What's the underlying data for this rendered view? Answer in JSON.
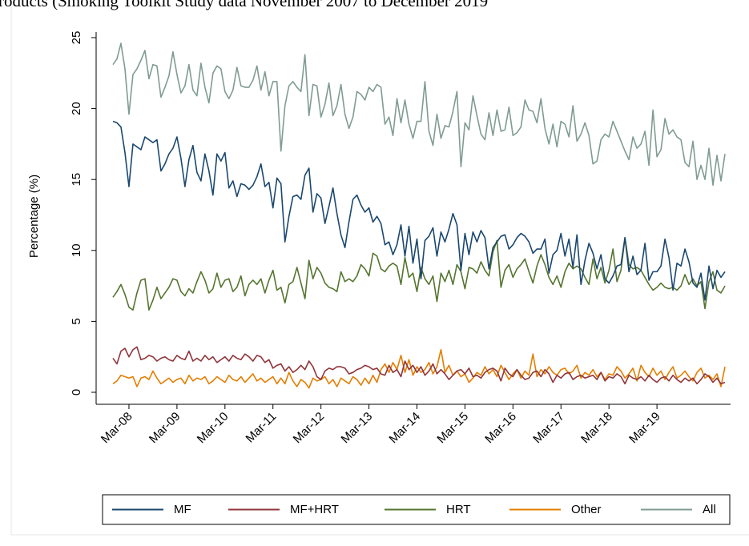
{
  "chart_data": {
    "type": "line",
    "title": "roducts (Smoking Toolkit Study data November 2007  to December 2019",
    "y_label": "Percentage (%)",
    "ylim": [
      0,
      25
    ],
    "yticks": [
      0,
      5,
      10,
      15,
      20,
      25
    ],
    "grid": false,
    "legend": "bottom",
    "categories": [
      null,
      null,
      null,
      null,
      "Mar-08",
      null,
      null,
      null,
      null,
      null,
      null,
      null,
      null,
      null,
      null,
      null,
      "Mar-09",
      null,
      null,
      null,
      null,
      null,
      null,
      null,
      null,
      null,
      null,
      null,
      "Mar-10",
      null,
      null,
      null,
      null,
      null,
      null,
      null,
      null,
      null,
      null,
      null,
      "Mar-11",
      null,
      null,
      null,
      null,
      null,
      null,
      null,
      null,
      null,
      null,
      null,
      "Mar-12",
      null,
      null,
      null,
      null,
      null,
      null,
      null,
      null,
      null,
      null,
      null,
      "Mar-13",
      null,
      null,
      null,
      null,
      null,
      null,
      null,
      null,
      null,
      null,
      null,
      "Mar-14",
      null,
      null,
      null,
      null,
      null,
      null,
      null,
      null,
      null,
      null,
      null,
      "Mar-15",
      null,
      null,
      null,
      null,
      null,
      null,
      null,
      null,
      null,
      null,
      null,
      "Mar-16",
      null,
      null,
      null,
      null,
      null,
      null,
      null,
      null,
      null,
      null,
      null,
      "Mar-17",
      null,
      null,
      null,
      null,
      null,
      null,
      null,
      null,
      null,
      null,
      null,
      "Mar-18",
      null,
      null,
      null,
      null,
      null,
      null,
      null,
      null,
      null,
      null,
      null,
      "Mar-19",
      null,
      null,
      null,
      null,
      null,
      null,
      null,
      null,
      null,
      null,
      null,
      null,
      null,
      null,
      null,
      null,
      null
    ],
    "series": [
      {
        "name": "MF",
        "color": "#1a476f",
        "values": [
          19.1,
          19.0,
          18.7,
          16.9,
          14.5,
          17.5,
          17.3,
          17.1,
          18.0,
          17.8,
          17.6,
          17.8,
          15.6,
          16.1,
          16.8,
          17.2,
          18.0,
          16.5,
          14.5,
          16.4,
          17.4,
          15.5,
          14.9,
          16.8,
          15.6,
          13.9,
          16.8,
          16.3,
          16.9,
          14.4,
          14.9,
          13.8,
          14.7,
          14.6,
          14.3,
          14.6,
          15.2,
          16.1,
          14.5,
          14.8,
          13.0,
          15.1,
          14.7,
          10.6,
          12.4,
          13.8,
          13.9,
          13.6,
          15.3,
          15.8,
          12.7,
          14.0,
          13.7,
          11.9,
          13.1,
          14.4,
          12.6,
          11.1,
          10.2,
          12.0,
          13.6,
          13.9,
          13.2,
          12.7,
          13.0,
          12.0,
          12.4,
          11.9,
          10.4,
          10.6,
          9.7,
          10.4,
          11.8,
          9.6,
          11.7,
          9.1,
          10.8,
          8.0,
          10.7,
          11.0,
          11.6,
          9.6,
          11.3,
          10.6,
          11.5,
          12.6,
          11.8,
          8.6,
          11.2,
          9.7,
          11.3,
          10.6,
          11.4,
          10.9,
          8.7,
          10.2,
          10.6,
          11.0,
          11.1,
          10.1,
          10.4,
          10.9,
          11.2,
          11.0,
          10.6,
          9.8,
          10.1,
          10.1,
          10.8,
          8.4,
          9.7,
          10.0,
          11.2,
          9.6,
          10.8,
          8.8,
          11.1,
          7.6,
          9.3,
          10.5,
          9.8,
          8.7,
          9.7,
          8.0,
          7.7,
          8.2,
          8.9,
          9.0,
          10.9,
          8.5,
          9.6,
          8.3,
          8.6,
          10.5,
          7.9,
          8.5,
          8.5,
          8.9,
          10.8,
          9.5,
          7.2,
          9.1,
          8.9,
          10.1,
          9.2,
          7.7,
          7.4,
          8.4,
          6.5,
          8.9,
          7.3,
          8.6,
          8.1,
          8.5
        ]
      },
      {
        "name": "MF+HRT",
        "color": "#90353b",
        "values": [
          2.4,
          2.0,
          2.9,
          3.1,
          2.5,
          3.0,
          3.2,
          2.3,
          2.4,
          2.6,
          2.5,
          2.2,
          2.4,
          2.5,
          2.3,
          2.2,
          2.6,
          2.4,
          2.3,
          2.9,
          2.2,
          2.4,
          2.2,
          2.6,
          2.3,
          2.5,
          2.1,
          2.3,
          2.5,
          2.2,
          2.6,
          2.4,
          2.3,
          2.7,
          2.5,
          2.2,
          2.6,
          2.5,
          2.1,
          2.3,
          1.7,
          1.9,
          2.0,
          1.5,
          1.8,
          1.4,
          1.6,
          1.9,
          1.6,
          2.2,
          1.8,
          1.1,
          0.9,
          1.5,
          1.7,
          1.6,
          1.8,
          1.8,
          1.7,
          1.3,
          1.4,
          1.6,
          1.7,
          1.9,
          1.8,
          1.6,
          1.7,
          1.3,
          1.2,
          1.9,
          1.4,
          1.6,
          1.1,
          2.2,
          1.6,
          1.9,
          1.4,
          1.8,
          1.2,
          1.5,
          2.0,
          1.3,
          1.6,
          1.3,
          0.9,
          1.2,
          1.5,
          1.6,
          1.3,
          1.7,
          1.1,
          1.2,
          1.0,
          1.4,
          1.6,
          1.7,
          1.5,
          0.8,
          1.7,
          1.3,
          1.1,
          1.6,
          1.2,
          0.9,
          1.0,
          1.4,
          1.5,
          1.1,
          1.6,
          1.3,
          0.7,
          1.2,
          1.0,
          1.3,
          1.4,
          0.9,
          1.1,
          1.2,
          1.0,
          1.1,
          1.2,
          0.9,
          1.4,
          0.8,
          1.1,
          1.0,
          1.3,
          1.1,
          0.6,
          1.2,
          1.0,
          0.9,
          1.1,
          0.8,
          1.2,
          0.9,
          0.7,
          1.0,
          1.1,
          0.8,
          1.2,
          0.9,
          0.7,
          1.0,
          0.8,
          1.0,
          0.6,
          0.9,
          1.3,
          1.1,
          0.7,
          1.0,
          0.6,
          0.7
        ]
      },
      {
        "name": "HRT",
        "color": "#55752f",
        "values": [
          6.7,
          7.1,
          7.6,
          6.9,
          6.0,
          5.8,
          7.0,
          7.9,
          8.0,
          5.8,
          6.5,
          7.4,
          6.6,
          7.0,
          7.4,
          8.0,
          7.9,
          7.1,
          6.8,
          7.3,
          7.0,
          7.8,
          8.5,
          7.9,
          7.0,
          7.3,
          8.4,
          7.4,
          7.9,
          8.0,
          7.1,
          7.4,
          8.2,
          6.8,
          7.6,
          7.9,
          7.6,
          8.0,
          7.0,
          7.9,
          8.6,
          7.2,
          7.4,
          6.3,
          7.6,
          7.8,
          8.8,
          7.7,
          6.6,
          9.3,
          8.0,
          8.8,
          8.4,
          7.7,
          7.4,
          7.3,
          7.1,
          8.5,
          7.8,
          8.0,
          7.8,
          8.2,
          9.0,
          8.7,
          8.2,
          9.8,
          9.6,
          8.7,
          8.5,
          8.9,
          9.1,
          8.9,
          7.6,
          9.5,
          8.1,
          8.4,
          7.1,
          8.8,
          8.0,
          7.6,
          8.2,
          6.4,
          8.4,
          7.8,
          8.6,
          7.6,
          9.0,
          8.5,
          7.3,
          8.8,
          8.7,
          8.4,
          9.2,
          8.6,
          8.2,
          9.9,
          10.7,
          7.4,
          8.6,
          9.0,
          8.1,
          8.7,
          9.0,
          9.4,
          8.5,
          7.7,
          8.9,
          9.7,
          9.0,
          8.1,
          7.6,
          8.2,
          7.4,
          8.5,
          9.1,
          8.7,
          8.9,
          8.7,
          8.1,
          7.6,
          9.4,
          8.0,
          8.8,
          7.7,
          8.6,
          10.1,
          7.8,
          8.6,
          10.9,
          9.0,
          8.7,
          8.8,
          8.6,
          8.1,
          7.6,
          7.2,
          7.4,
          7.7,
          7.4,
          7.3,
          7.4,
          7.2,
          7.5,
          8.3,
          7.6,
          8.0,
          7.5,
          7.8,
          5.9,
          7.8,
          8.5,
          7.2,
          7.0,
          7.5
        ]
      },
      {
        "name": "Other",
        "color": "#e37e00",
        "values": [
          0.6,
          0.8,
          1.2,
          1.1,
          1.0,
          1.1,
          0.4,
          1.0,
          1.1,
          0.9,
          1.5,
          1.0,
          0.6,
          0.8,
          1.0,
          0.7,
          0.9,
          1.0,
          0.6,
          1.2,
          0.8,
          1.0,
          0.9,
          1.1,
          0.6,
          0.8,
          1.1,
          0.9,
          0.7,
          1.2,
          0.9,
          0.8,
          1.1,
          0.7,
          1.0,
          1.3,
          0.8,
          1.0,
          0.7,
          0.9,
          1.1,
          0.6,
          1.0,
          0.6,
          1.4,
          0.8,
          0.4,
          0.9,
          0.7,
          0.3,
          1.0,
          0.8,
          0.9,
          1.1,
          0.6,
          0.9,
          0.4,
          1.0,
          0.8,
          0.6,
          1.1,
          0.9,
          0.5,
          1.0,
          0.6,
          1.2,
          0.7,
          1.6,
          2.0,
          1.4,
          2.1,
          1.6,
          2.6,
          1.4,
          2.3,
          1.2,
          1.8,
          1.4,
          1.6,
          2.1,
          1.3,
          1.8,
          3.0,
          1.4,
          1.9,
          1.2,
          1.5,
          1.1,
          1.3,
          0.7,
          1.0,
          1.4,
          1.2,
          1.8,
          1.3,
          1.6,
          1.1,
          1.9,
          1.4,
          0.9,
          1.3,
          1.6,
          1.0,
          1.5,
          1.2,
          2.7,
          1.1,
          1.6,
          1.3,
          1.8,
          1.4,
          1.2,
          1.6,
          1.7,
          1.3,
          1.5,
          1.9,
          1.0,
          1.4,
          1.2,
          1.6,
          1.1,
          1.4,
          0.9,
          1.3,
          1.2,
          1.8,
          1.5,
          1.0,
          1.3,
          1.7,
          0.8,
          1.9,
          1.4,
          1.1,
          1.7,
          1.2,
          1.5,
          0.9,
          1.4,
          1.8,
          1.0,
          1.2,
          1.5,
          1.1,
          0.8,
          1.4,
          1.7,
          1.0,
          1.2,
          0.9,
          1.3,
          0.4,
          1.8
        ]
      },
      {
        "name": "All",
        "color": "#7f9c92",
        "values": [
          23.1,
          23.5,
          24.6,
          22.8,
          19.6,
          22.4,
          22.8,
          23.4,
          24.1,
          22.1,
          23.1,
          23.0,
          20.8,
          21.5,
          22.3,
          24.0,
          22.4,
          21.1,
          21.6,
          23.1,
          21.3,
          20.9,
          23.2,
          21.5,
          20.4,
          22.5,
          23.0,
          22.8,
          21.2,
          20.7,
          21.3,
          22.9,
          21.6,
          21.5,
          21.5,
          22.0,
          23.0,
          21.3,
          22.6,
          20.9,
          21.9,
          21.9,
          17.0,
          20.2,
          21.6,
          21.9,
          21.5,
          21.2,
          23.8,
          19.5,
          21.7,
          21.6,
          19.4,
          20.3,
          21.8,
          19.5,
          20.2,
          21.7,
          19.6,
          18.6,
          19.4,
          21.2,
          21.0,
          20.6,
          21.5,
          21.2,
          21.7,
          21.5,
          18.9,
          19.4,
          18.1,
          20.7,
          19.0,
          20.6,
          18.9,
          17.9,
          19.1,
          19.1,
          21.9,
          18.4,
          17.4,
          19.6,
          17.9,
          18.8,
          18.7,
          19.8,
          21.2,
          15.9,
          19.0,
          18.5,
          20.9,
          19.5,
          18.2,
          17.8,
          19.7,
          18.1,
          19.9,
          18.4,
          18.5,
          20.1,
          18.1,
          18.3,
          18.7,
          20.6,
          19.9,
          19.8,
          19.0,
          20.7,
          18.6,
          17.5,
          18.9,
          17.3,
          19.1,
          18.9,
          18.0,
          20.2,
          17.7,
          18.2,
          19.0,
          18.1,
          16.1,
          16.3,
          17.8,
          18.2,
          18.0,
          19.1,
          18.4,
          17.7,
          17.0,
          16.4,
          18.0,
          17.2,
          17.5,
          18.4,
          16.0,
          19.9,
          16.6,
          17.1,
          19.3,
          18.2,
          18.5,
          18.0,
          17.8,
          16.2,
          15.9,
          17.7,
          15.0,
          16.0,
          15.0,
          17.2,
          14.6,
          16.7,
          14.9,
          16.8
        ]
      }
    ]
  }
}
